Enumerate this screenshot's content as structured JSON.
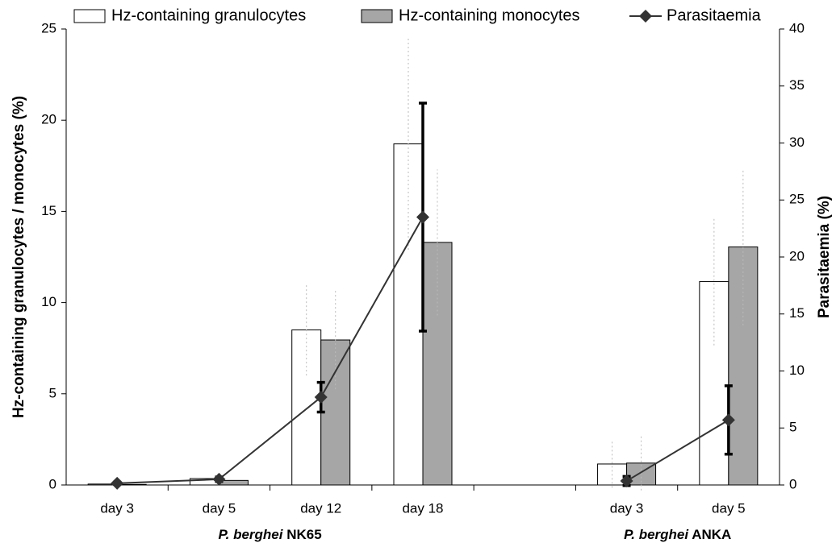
{
  "chart_data": {
    "type": "bar",
    "y_label": "Hz-containing granulocytes  / monocytes  (%)",
    "y2_label": "Parasitaemia (%)",
    "categories": [
      "day 3",
      "day 5",
      "day 12",
      "day 18",
      null,
      "day 3",
      "day 5"
    ],
    "groups": [
      {
        "species": "P. berghei",
        "strain": "NK65"
      },
      {
        "species": "P. berghei",
        "strain": "ANKA"
      }
    ],
    "series": [
      {
        "name": "Hz-containing granulocytes",
        "type": "bar",
        "color": "#ffffff",
        "values": [
          0.05,
          0.35,
          8.5,
          18.7,
          null,
          1.15,
          11.15
        ],
        "errors": [
          0,
          0,
          2.5,
          5.8,
          null,
          1.3,
          3.5
        ]
      },
      {
        "name": "Hz-containing monocytes",
        "type": "bar",
        "color": "#a6a6a6",
        "values": [
          0.03,
          0.25,
          7.95,
          13.3,
          null,
          1.2,
          13.05
        ],
        "errors": [
          0,
          0,
          2.7,
          4.0,
          null,
          1.5,
          4.3
        ]
      },
      {
        "name": "Parasitaemia",
        "type": "line",
        "axis": "y2",
        "color": "#333333",
        "values": [
          0.15,
          0.5,
          7.7,
          23.5,
          null,
          0.35,
          5.7
        ],
        "errors": [
          0.1,
          0.2,
          1.3,
          10.0,
          null,
          0.4,
          3.0
        ]
      }
    ],
    "ylim": [
      0,
      25
    ],
    "yticks": [
      0,
      5,
      10,
      15,
      20,
      25
    ],
    "y2lim": [
      0,
      40
    ],
    "y2ticks": [
      0,
      5,
      10,
      15,
      20,
      25,
      30,
      35,
      40
    ]
  }
}
